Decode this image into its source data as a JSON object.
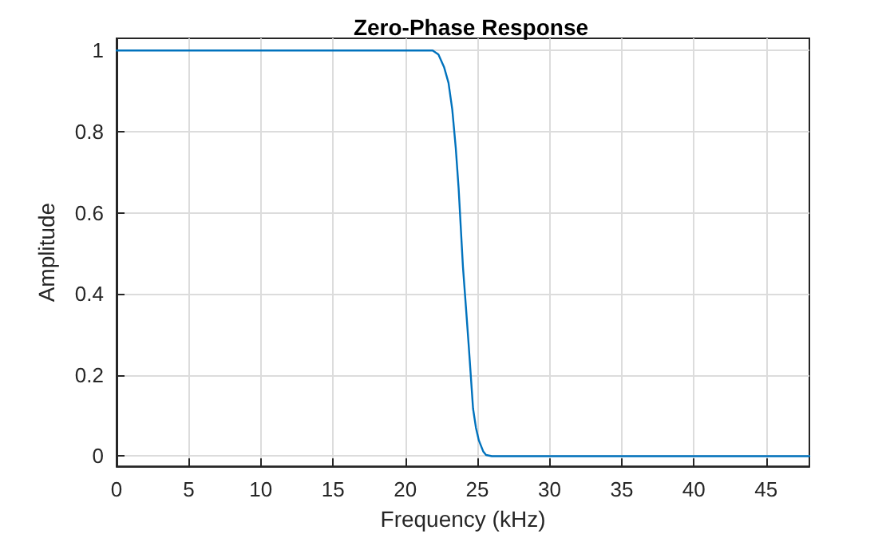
{
  "chart_data": {
    "type": "line",
    "title": "Zero-Phase Response",
    "xlabel": "Frequency (kHz)",
    "ylabel": "Amplitude",
    "x": [
      0,
      10,
      20,
      21.9,
      22.3,
      22.7,
      23.0,
      23.26,
      23.5,
      23.7,
      24.0,
      24.2,
      24.4,
      24.7,
      24.9,
      25.1,
      25.4,
      25.6,
      26.0,
      30,
      40,
      48
    ],
    "series": [
      {
        "color": "#0072bd",
        "values": [
          1,
          1,
          1,
          1,
          0.99,
          0.958,
          0.92,
          0.854,
          0.76,
          0.66,
          0.466,
          0.37,
          0.272,
          0.117,
          0.07,
          0.039,
          0.012,
          0.003,
          0,
          0,
          0,
          0
        ]
      }
    ],
    "xlim": [
      0,
      48
    ],
    "xticks": [
      0,
      5,
      10,
      15,
      20,
      25,
      30,
      35,
      40,
      45
    ],
    "ylim": [
      -0.025,
      1.03
    ],
    "yticks": [
      0,
      0.2,
      0.4,
      0.6,
      0.8,
      1
    ],
    "grid": true,
    "marker": "none",
    "line_style": "solid"
  }
}
